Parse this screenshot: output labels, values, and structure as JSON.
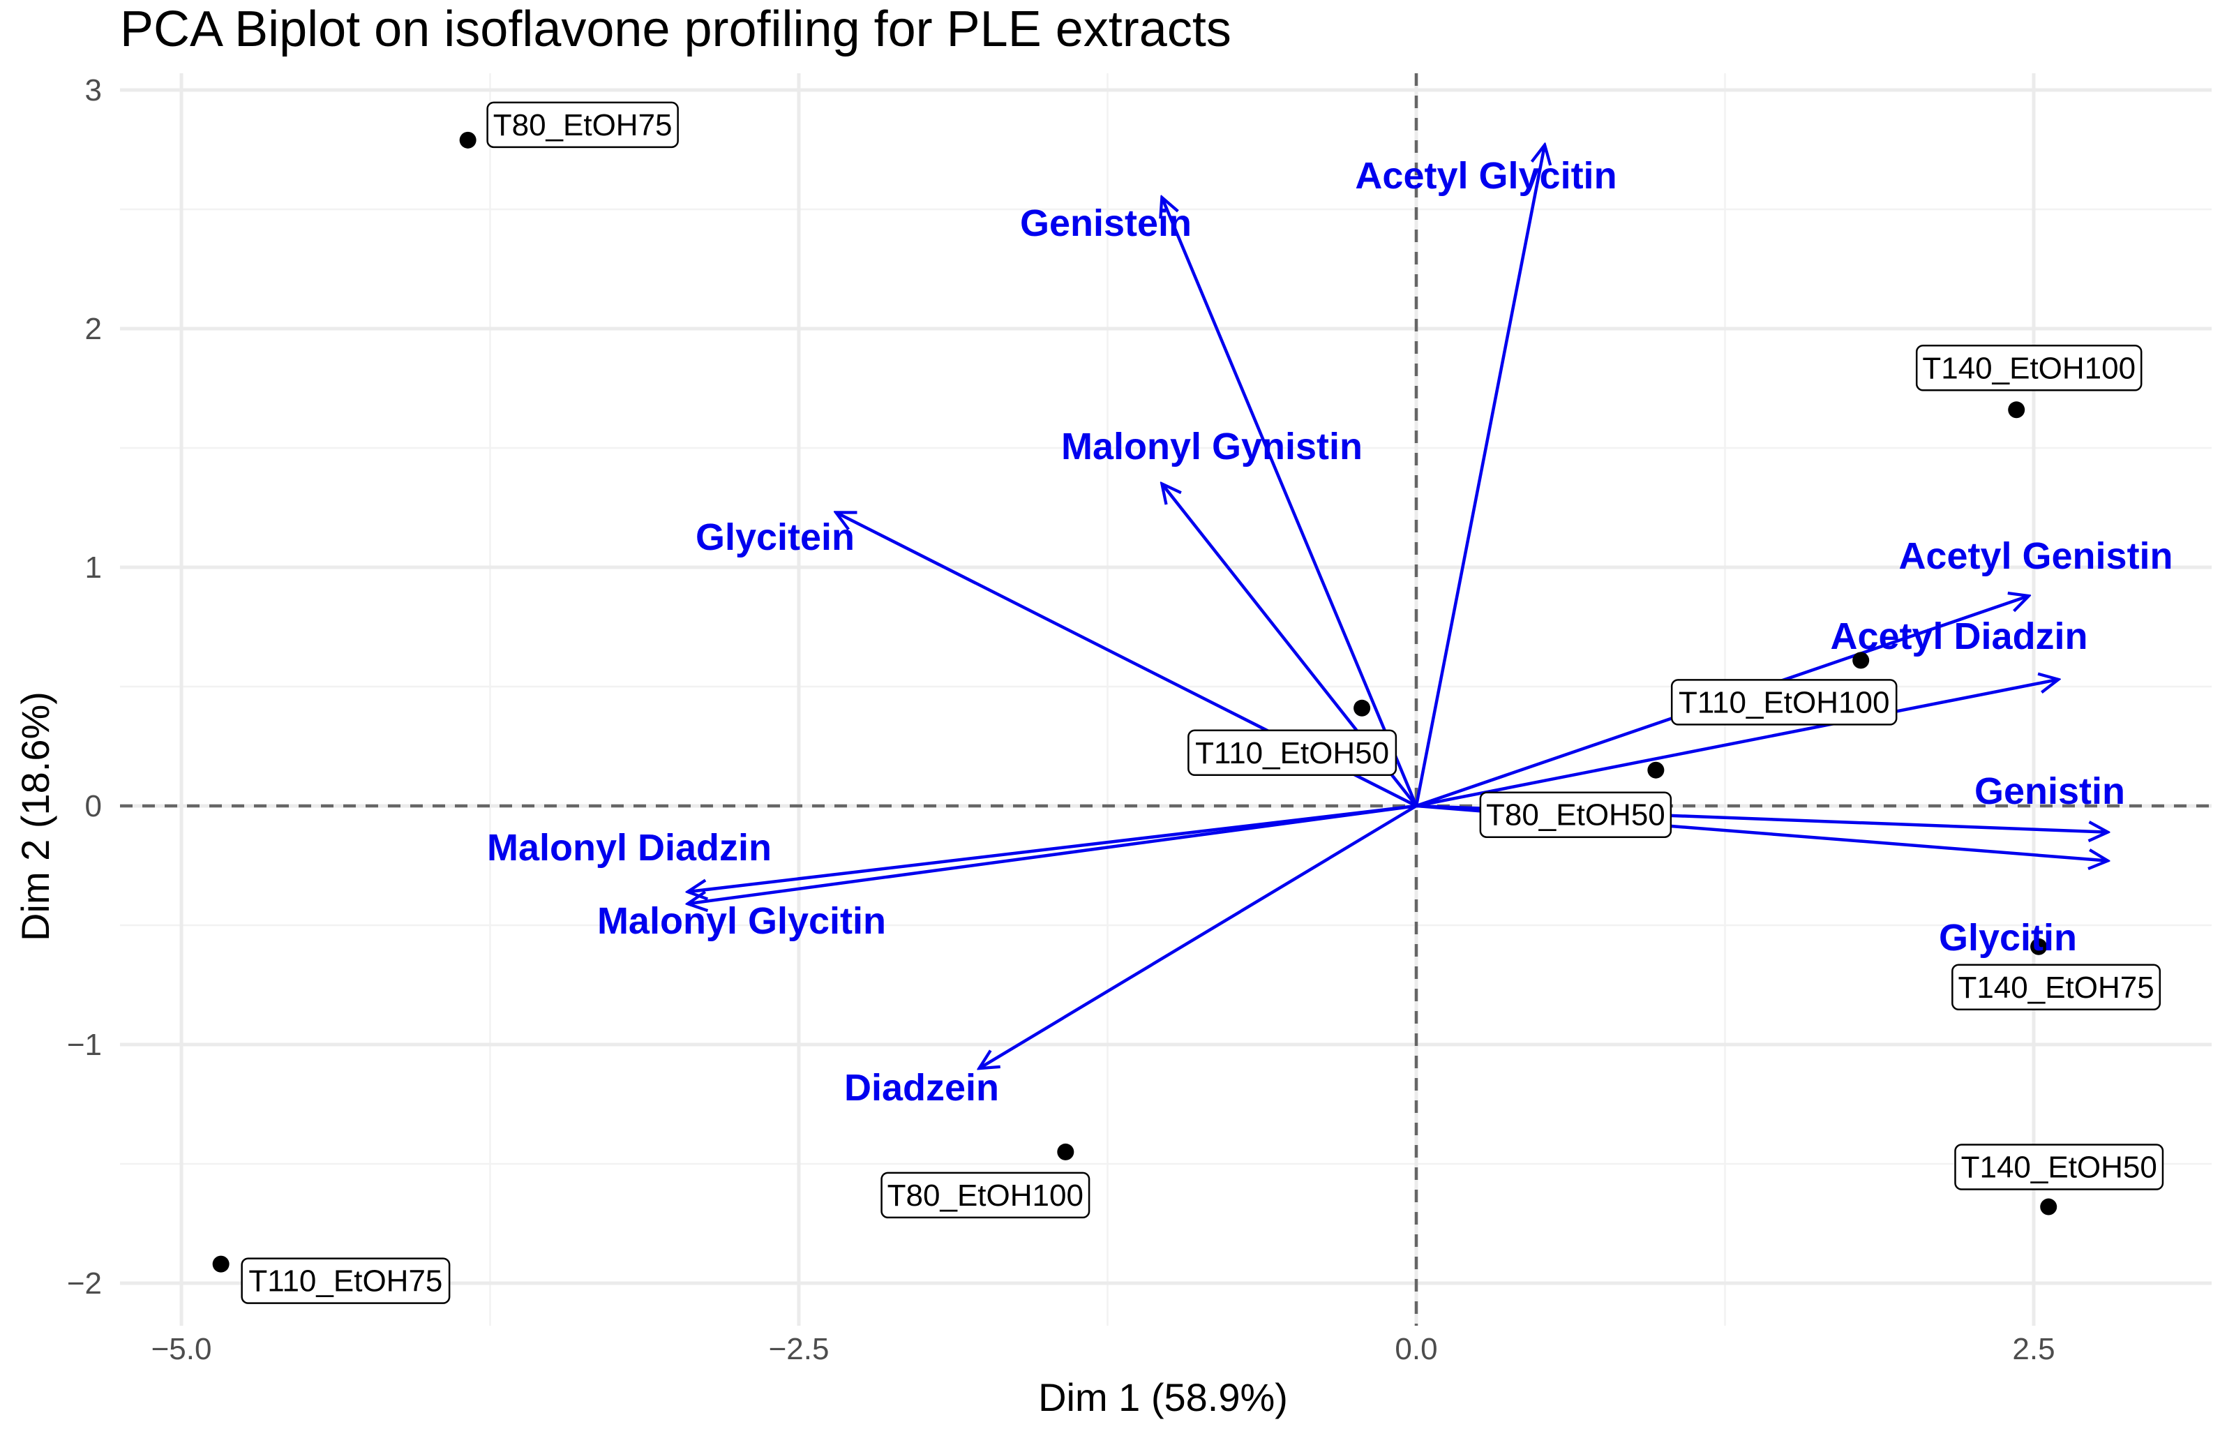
{
  "chart_data": {
    "type": "scatter",
    "title": "PCA Biplot on isoflavone profiling for PLE extracts",
    "xlabel": "Dim 1 (58.9%)",
    "ylabel": "Dim 2 (18.6%)",
    "xlim": [
      -5.1,
      3.2
    ],
    "ylim": [
      -2.2,
      3.05
    ],
    "xticks": [
      -5.0,
      -2.5,
      0.0,
      2.5
    ],
    "xtick_labels": [
      "−5.0",
      "−2.5",
      "0.0",
      "2.5"
    ],
    "yticks": [
      -2,
      -1,
      0,
      1,
      2,
      3
    ],
    "ytick_labels": [
      "−2",
      "−1",
      "0",
      "1",
      "2",
      "3"
    ],
    "grid": true,
    "reference_lines": {
      "x": 0,
      "y": 0,
      "style": "dashed"
    },
    "colors": {
      "variables": "#0000ee",
      "points": "#000000",
      "grid": "#ebebeb",
      "reference": "#666666"
    },
    "points": [
      {
        "label": "T80_EtOH75",
        "x": -3.84,
        "y": 2.79
      },
      {
        "label": "T110_EtOH75",
        "x": -4.84,
        "y": -1.92
      },
      {
        "label": "T140_EtOH100",
        "x": 2.43,
        "y": 1.66
      },
      {
        "label": "T110_EtOH100",
        "x": 1.8,
        "y": 0.61
      },
      {
        "label": "T110_EtOH50",
        "x": -0.22,
        "y": 0.41
      },
      {
        "label": "T80_EtOH50",
        "x": 0.97,
        "y": 0.15
      },
      {
        "label": "T140_EtOH75",
        "x": 2.52,
        "y": -0.59
      },
      {
        "label": "T80_EtOH100",
        "x": -1.42,
        "y": -1.45
      },
      {
        "label": "T140_EtOH50",
        "x": 2.56,
        "y": -1.68
      }
    ],
    "variables": [
      {
        "name": "Acetyl Glycitin",
        "x": 0.52,
        "y": 2.77
      },
      {
        "name": "Genistein",
        "x": -1.03,
        "y": 2.55
      },
      {
        "name": "Malonyl Gynistin",
        "x": -1.03,
        "y": 1.35
      },
      {
        "name": "Glycitein",
        "x": -2.35,
        "y": 1.23
      },
      {
        "name": "Acetyl Genistin",
        "x": 2.48,
        "y": 0.88
      },
      {
        "name": "Acetyl Diadzin",
        "x": 2.6,
        "y": 0.53
      },
      {
        "name": "Genistin",
        "x": 2.8,
        "y": -0.11
      },
      {
        "name": "Glycitin",
        "x": 2.8,
        "y": -0.23
      },
      {
        "name": "Malonyl Diadzin",
        "x": -2.95,
        "y": -0.36
      },
      {
        "name": "Malonyl Glycitin",
        "x": -2.95,
        "y": -0.41
      },
      {
        "name": "Diadzein",
        "x": -1.77,
        "y": -1.1
      }
    ]
  }
}
